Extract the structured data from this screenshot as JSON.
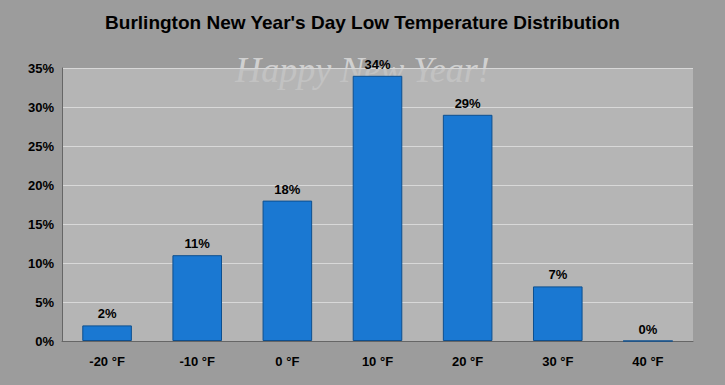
{
  "chart_data": {
    "type": "bar",
    "title": "Burlington New Year's Day Low Temperature Distribution",
    "annotations": [
      "Happy New Year!"
    ],
    "categories": [
      "-20 °F",
      "-10 °F",
      "0 °F",
      "10 °F",
      "20 °F",
      "30 °F",
      "40 °F"
    ],
    "values": [
      2,
      11,
      18,
      34,
      29,
      7,
      0
    ],
    "value_labels": [
      "2%",
      "11%",
      "18%",
      "34%",
      "29%",
      "7%",
      "0%"
    ],
    "data_labels": true,
    "color": "#1a78d2",
    "ylim": [
      0,
      35
    ],
    "yticks": [
      {
        "value": 0,
        "label": "0%"
      },
      {
        "value": 5,
        "label": "5%"
      },
      {
        "value": 10,
        "label": "10%"
      },
      {
        "value": 15,
        "label": "15%"
      },
      {
        "value": 20,
        "label": "20%"
      },
      {
        "value": 25,
        "label": "25%"
      },
      {
        "value": 30,
        "label": "30%"
      },
      {
        "value": 35,
        "label": "35%"
      }
    ],
    "grid": true
  }
}
